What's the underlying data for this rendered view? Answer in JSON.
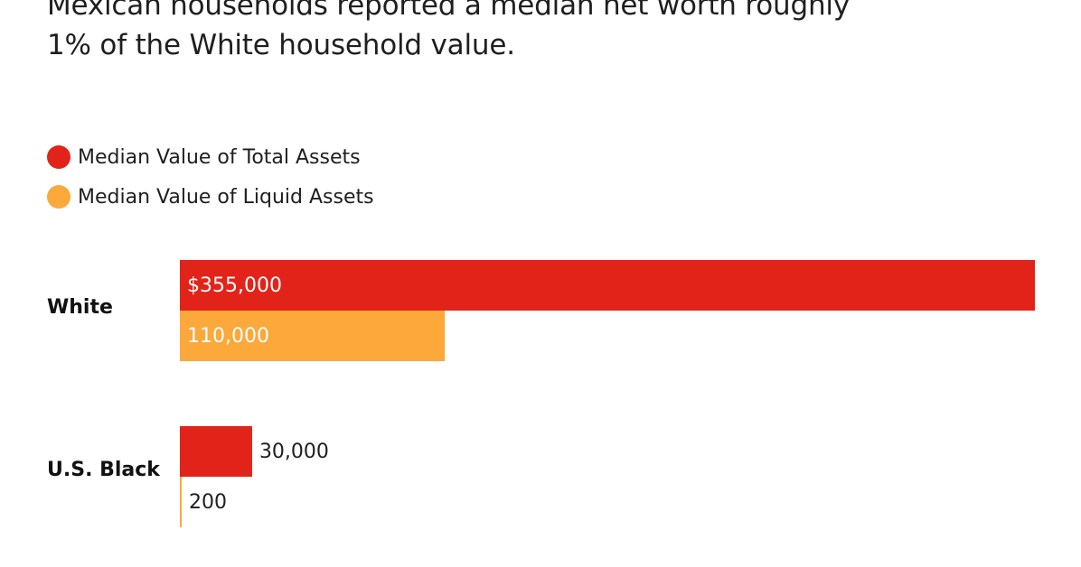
{
  "subtitle": {
    "line1": "Mexican households reported a median net worth roughly",
    "line2": "1% of the White household value."
  },
  "colors": {
    "total_assets": "#e2231a",
    "liquid_assets": "#fca83a",
    "text": "#1f1f1f"
  },
  "chart_data": {
    "type": "bar",
    "orientation": "horizontal",
    "categories": [
      "White",
      "U.S. Black"
    ],
    "series": [
      {
        "name": "Median Value of Total Assets",
        "values": [
          355000,
          30000
        ]
      },
      {
        "name": "Median Value of Liquid Assets",
        "values": [
          110000,
          200
        ]
      }
    ],
    "data_labels": [
      [
        "$355,000",
        "110,000"
      ],
      [
        "30,000",
        "200"
      ]
    ],
    "legend_position": "top-left",
    "grid": false,
    "xlim": [
      0,
      355000
    ]
  }
}
